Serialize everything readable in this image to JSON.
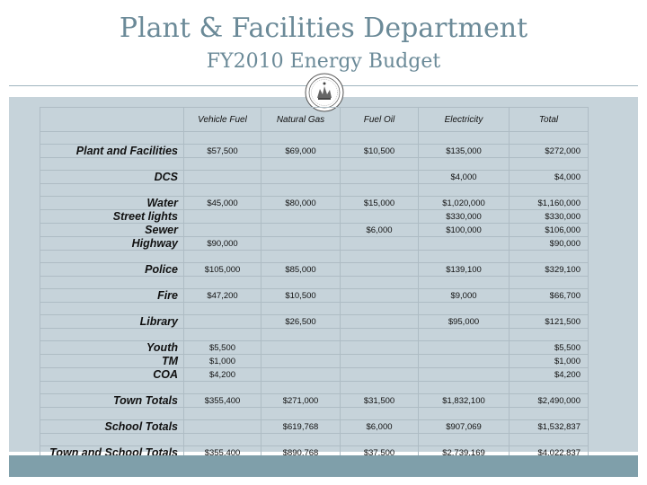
{
  "header": {
    "title": "Plant & Facilities Department",
    "subtitle": "FY2010 Energy Budget"
  },
  "colors": {
    "title": "#6b8a98",
    "panel": "#c6d3da",
    "footer_band": "#7f9faa"
  },
  "seal": {
    "icon": "town-seal-icon"
  },
  "table": {
    "columns": [
      "",
      "Vehicle Fuel",
      "Natural Gas",
      "Fuel Oil",
      "Electricity",
      "Total"
    ],
    "rows": [
      {
        "label": "",
        "vehicle_fuel": "",
        "natural_gas": "",
        "fuel_oil": "",
        "electricity": "",
        "total": ""
      },
      {
        "label": "Plant and Facilities",
        "vehicle_fuel": "$57,500",
        "natural_gas": "$69,000",
        "fuel_oil": "$10,500",
        "electricity": "$135,000",
        "total": "$272,000"
      },
      {
        "label": "",
        "vehicle_fuel": "",
        "natural_gas": "",
        "fuel_oil": "",
        "electricity": "",
        "total": ""
      },
      {
        "label": "DCS",
        "vehicle_fuel": "",
        "natural_gas": "",
        "fuel_oil": "",
        "electricity": "$4,000",
        "total": "$4,000"
      },
      {
        "label": "",
        "vehicle_fuel": "",
        "natural_gas": "",
        "fuel_oil": "",
        "electricity": "",
        "total": ""
      },
      {
        "label": "Water",
        "vehicle_fuel": "$45,000",
        "natural_gas": "$80,000",
        "fuel_oil": "$15,000",
        "electricity": "$1,020,000",
        "total": "$1,160,000"
      },
      {
        "label": "Street lights",
        "vehicle_fuel": "",
        "natural_gas": "",
        "fuel_oil": "",
        "electricity": "$330,000",
        "total": "$330,000"
      },
      {
        "label": "Sewer",
        "vehicle_fuel": "",
        "natural_gas": "",
        "fuel_oil": "$6,000",
        "electricity": "$100,000",
        "total": "$106,000"
      },
      {
        "label": "Highway",
        "vehicle_fuel": "$90,000",
        "natural_gas": "",
        "fuel_oil": "",
        "electricity": "",
        "total": "$90,000"
      },
      {
        "label": "",
        "vehicle_fuel": "",
        "natural_gas": "",
        "fuel_oil": "",
        "electricity": "",
        "total": ""
      },
      {
        "label": "Police",
        "vehicle_fuel": "$105,000",
        "natural_gas": "$85,000",
        "fuel_oil": "",
        "electricity": "$139,100",
        "total": "$329,100"
      },
      {
        "label": "",
        "vehicle_fuel": "",
        "natural_gas": "",
        "fuel_oil": "",
        "electricity": "",
        "total": ""
      },
      {
        "label": "Fire",
        "vehicle_fuel": "$47,200",
        "natural_gas": "$10,500",
        "fuel_oil": "",
        "electricity": "$9,000",
        "total": "$66,700"
      },
      {
        "label": "",
        "vehicle_fuel": "",
        "natural_gas": "",
        "fuel_oil": "",
        "electricity": "",
        "total": ""
      },
      {
        "label": "Library",
        "vehicle_fuel": "",
        "natural_gas": "$26,500",
        "fuel_oil": "",
        "electricity": "$95,000",
        "total": "$121,500"
      },
      {
        "label": "",
        "vehicle_fuel": "",
        "natural_gas": "",
        "fuel_oil": "",
        "electricity": "",
        "total": ""
      },
      {
        "label": "Youth",
        "vehicle_fuel": "$5,500",
        "natural_gas": "",
        "fuel_oil": "",
        "electricity": "",
        "total": "$5,500"
      },
      {
        "label": "TM",
        "vehicle_fuel": "$1,000",
        "natural_gas": "",
        "fuel_oil": "",
        "electricity": "",
        "total": "$1,000"
      },
      {
        "label": "COA",
        "vehicle_fuel": "$4,200",
        "natural_gas": "",
        "fuel_oil": "",
        "electricity": "",
        "total": "$4,200"
      },
      {
        "label": "",
        "vehicle_fuel": "",
        "natural_gas": "",
        "fuel_oil": "",
        "electricity": "",
        "total": ""
      },
      {
        "label": "Town Totals",
        "vehicle_fuel": "$355,400",
        "natural_gas": "$271,000",
        "fuel_oil": "$31,500",
        "electricity": "$1,832,100",
        "total": "$2,490,000"
      },
      {
        "label": "",
        "vehicle_fuel": "",
        "natural_gas": "",
        "fuel_oil": "",
        "electricity": "",
        "total": ""
      },
      {
        "label": "School Totals",
        "vehicle_fuel": "",
        "natural_gas": "$619,768",
        "fuel_oil": "$6,000",
        "electricity": "$907,069",
        "total": "$1,532,837"
      },
      {
        "label": "",
        "vehicle_fuel": "",
        "natural_gas": "",
        "fuel_oil": "",
        "electricity": "",
        "total": ""
      },
      {
        "label": "Town and School Totals",
        "vehicle_fuel": "$355,400",
        "natural_gas": "$890,768",
        "fuel_oil": "$37,500",
        "electricity": "$2,739,169",
        "total": "$4,022,837"
      }
    ]
  }
}
